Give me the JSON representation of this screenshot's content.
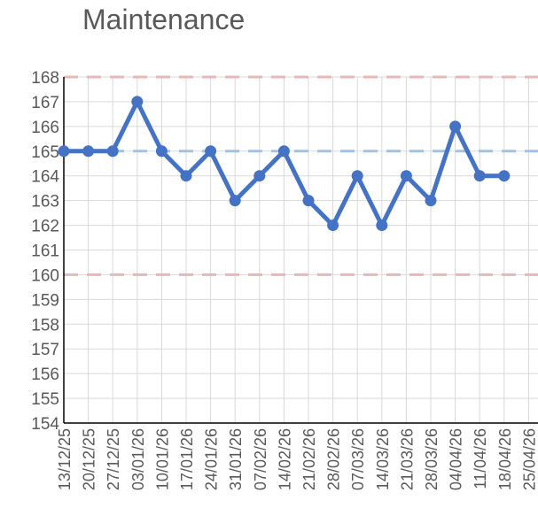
{
  "chart_data": {
    "type": "line",
    "title": "Maintenance",
    "xlabel": "",
    "ylabel": "",
    "ylim": [
      154,
      168
    ],
    "yticks": [
      154,
      155,
      156,
      157,
      158,
      159,
      160,
      161,
      162,
      163,
      164,
      165,
      166,
      167,
      168
    ],
    "categories": [
      "13/12/25",
      "20/12/25",
      "27/12/25",
      "03/01/26",
      "10/01/26",
      "17/01/26",
      "24/01/26",
      "31/01/26",
      "07/02/26",
      "14/02/26",
      "21/02/26",
      "28/02/26",
      "07/03/26",
      "14/03/26",
      "21/03/26",
      "28/03/26",
      "04/04/26",
      "11/04/26",
      "18/04/26",
      "25/04/26"
    ],
    "series": [
      {
        "values": [
          165,
          165,
          165,
          167,
          165,
          164,
          165,
          163,
          164,
          165,
          163,
          162,
          164,
          162,
          164,
          163,
          166,
          164,
          164,
          null
        ],
        "color": "#4472c4"
      }
    ],
    "reference_lines": [
      {
        "value": 168,
        "color": "#e6b9b8",
        "style": "dashed"
      },
      {
        "value": 165,
        "color": "#9dc3e6",
        "style": "dashed"
      },
      {
        "value": 160,
        "color": "#e6b9b8",
        "style": "dashed"
      }
    ],
    "grid": true,
    "gridline_color": "#d9d9d9",
    "legend": "none"
  }
}
